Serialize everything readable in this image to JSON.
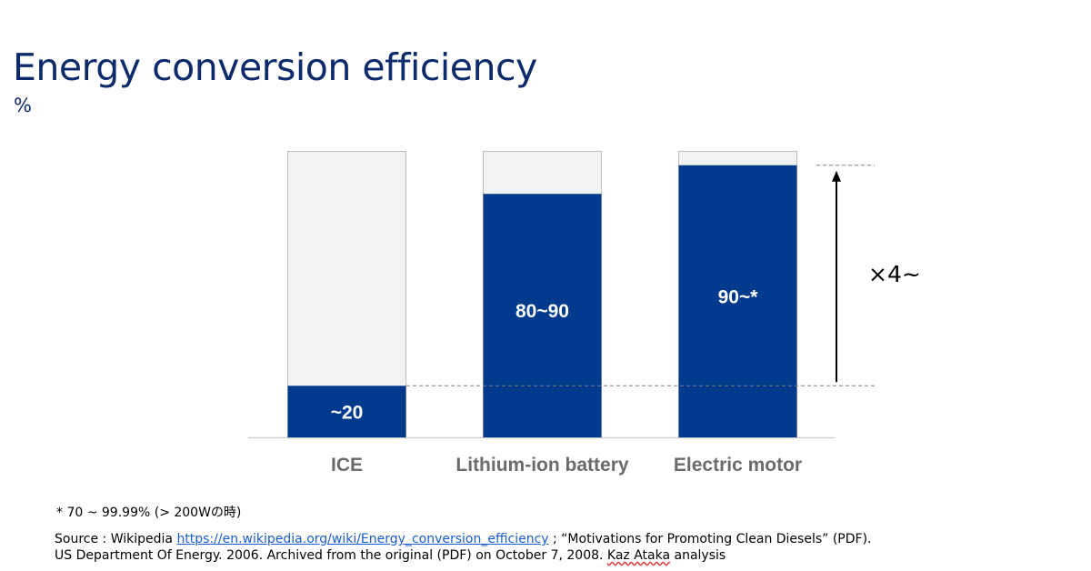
{
  "title": "Energy conversion efficiency",
  "unit": "%",
  "colors": {
    "bar_fill": "#003a8c",
    "bar_bg": "#f2f2f2",
    "bar_border": "#bfbfbf",
    "title": "#0d2a6b",
    "category_label": "#6b6b6b",
    "reference_line": "#7f7f7f",
    "arrow": "#000000"
  },
  "chart_data": {
    "type": "bar",
    "stacked": true,
    "categories": [
      "ICE",
      "Lithium-ion battery",
      "Electric motor"
    ],
    "series": [
      {
        "values": [
          18,
          85,
          95
        ]
      },
      {
        "values": [
          82,
          15,
          5
        ]
      }
    ],
    "data_labels": [
      "~20",
      "80~90",
      "90~*"
    ],
    "ylim": [
      0,
      100
    ],
    "grid": false,
    "reference_lines": [
      18,
      95
    ],
    "annotation": "×4~"
  },
  "footnote": "* 70 ~ 99.99% (> 200Wの時)",
  "source": {
    "prefix": "Source : Wikipedia ",
    "link": "https://en.wikipedia.org/wiki/Energy_conversion_efficiency",
    "after_link": " ; “Motivations for Promoting Clean Diesels” (PDF).",
    "line2_main": "US Department Of Energy. 2006. Archived from the original (PDF) on October 7, 2008. ",
    "line2_author": "Kaz Ataka",
    "line2_end": " analysis"
  }
}
